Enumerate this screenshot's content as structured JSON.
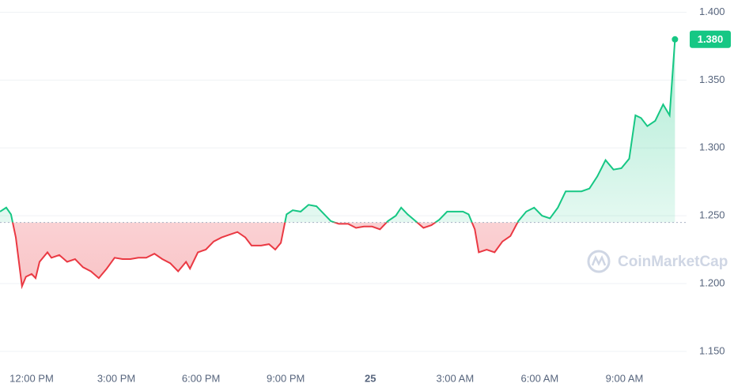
{
  "chart_data": {
    "type": "line",
    "watermark": "CoinMarketCap",
    "baseline": 1.245,
    "current_price": {
      "value": 1.38,
      "label": "1.380"
    },
    "up_color": "#16c784",
    "down_color": "#ea3943",
    "grid": true,
    "xlim": [
      -1.12,
      23.2
    ],
    "ylim": [
      1.14,
      1.409
    ],
    "xticks": [
      {
        "value": 0,
        "label": "12:00 PM"
      },
      {
        "value": 3,
        "label": "3:00 PM"
      },
      {
        "value": 6,
        "label": "6:00 PM"
      },
      {
        "value": 9,
        "label": "9:00 PM"
      },
      {
        "value": 12,
        "label": "25"
      },
      {
        "value": 15,
        "label": "3:00 AM"
      },
      {
        "value": 18,
        "label": "6:00 AM"
      },
      {
        "value": 21,
        "label": "9:00 AM"
      }
    ],
    "yticks": [
      {
        "value": 1.15,
        "label": "1.150"
      },
      {
        "value": 1.2,
        "label": "1.200"
      },
      {
        "value": 1.25,
        "label": "1.250"
      },
      {
        "value": 1.3,
        "label": "1.300"
      },
      {
        "value": 1.35,
        "label": "1.350"
      },
      {
        "value": 1.4,
        "label": "1.400"
      }
    ],
    "x": [
      -1.12,
      -0.9,
      -0.73,
      -0.56,
      -0.34,
      -0.2,
      0,
      0.14,
      0.28,
      0.56,
      0.7,
      0.98,
      1.26,
      1.54,
      1.82,
      2.1,
      2.38,
      2.66,
      2.94,
      3.22,
      3.5,
      3.78,
      4.06,
      4.35,
      4.63,
      4.91,
      5.19,
      5.47,
      5.61,
      5.89,
      6.17,
      6.45,
      6.73,
      7.01,
      7.29,
      7.57,
      7.79,
      8.13,
      8.41,
      8.63,
      8.83,
      9.03,
      9.25,
      9.53,
      9.81,
      10.09,
      10.37,
      10.6,
      10.88,
      11.21,
      11.49,
      11.77,
      12.06,
      12.34,
      12.62,
      12.9,
      13.09,
      13.32,
      13.6,
      13.88,
      14.16,
      14.44,
      14.72,
      15,
      15.28,
      15.48,
      15.7,
      15.84,
      16.12,
      16.4,
      16.68,
      16.96,
      17.24,
      17.52,
      17.8,
      18.08,
      18.36,
      18.64,
      18.92,
      19.2,
      19.48,
      19.76,
      20.04,
      20.33,
      20.61,
      20.89,
      21.17,
      21.39,
      21.59,
      21.81,
      22.09,
      22.37,
      22.6,
      22.79
    ],
    "values": [
      1.253,
      1.256,
      1.251,
      1.234,
      1.198,
      1.205,
      1.207,
      1.204,
      1.216,
      1.223,
      1.219,
      1.221,
      1.216,
      1.218,
      1.212,
      1.209,
      1.204,
      1.211,
      1.219,
      1.218,
      1.218,
      1.219,
      1.219,
      1.222,
      1.218,
      1.215,
      1.209,
      1.216,
      1.211,
      1.223,
      1.225,
      1.231,
      1.234,
      1.236,
      1.238,
      1.234,
      1.228,
      1.228,
      1.229,
      1.225,
      1.23,
      1.251,
      1.254,
      1.253,
      1.258,
      1.257,
      1.251,
      1.246,
      1.244,
      1.244,
      1.241,
      1.242,
      1.242,
      1.24,
      1.246,
      1.25,
      1.256,
      1.251,
      1.246,
      1.241,
      1.243,
      1.247,
      1.253,
      1.253,
      1.253,
      1.251,
      1.24,
      1.223,
      1.225,
      1.223,
      1.231,
      1.235,
      1.246,
      1.253,
      1.256,
      1.25,
      1.248,
      1.256,
      1.268,
      1.268,
      1.268,
      1.27,
      1.279,
      1.291,
      1.284,
      1.285,
      1.292,
      1.324,
      1.322,
      1.316,
      1.32,
      1.332,
      1.324,
      1.38
    ]
  }
}
